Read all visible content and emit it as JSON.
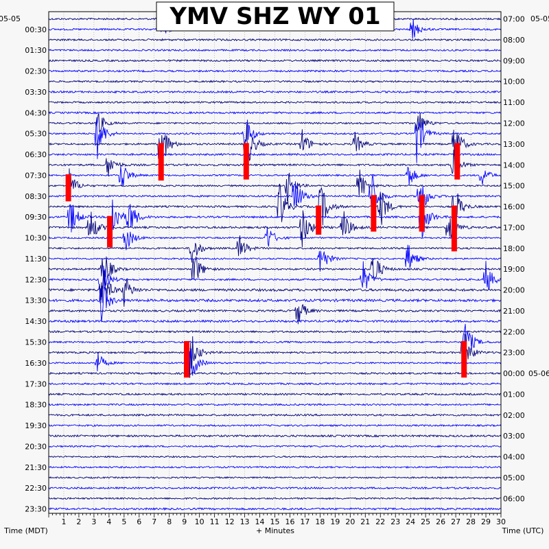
{
  "chart_data": {
    "type": "helicorder",
    "title": "YMV SHZ WY 01",
    "date_left": "05-05",
    "date_right": "05-05",
    "date_right_change": "05-06",
    "xlabel": "+ Minutes",
    "left_axis_label": "Time (MDT)",
    "right_axis_label": "Time (UTC)",
    "x_ticks": [
      "1",
      "2",
      "3",
      "4",
      "5",
      "6",
      "7",
      "8",
      "9",
      "10",
      "11",
      "12",
      "13",
      "14",
      "15",
      "16",
      "17",
      "18",
      "19",
      "20",
      "21",
      "22",
      "23",
      "24",
      "25",
      "26",
      "27",
      "28",
      "29",
      "30"
    ],
    "xlim": [
      0,
      30
    ],
    "rows_per_hour": 2,
    "left_time_labels": [
      "00:30",
      "01:30",
      "02:30",
      "03:30",
      "04:30",
      "05:30",
      "06:30",
      "07:30",
      "08:30",
      "09:30",
      "10:30",
      "11:30",
      "12:30",
      "13:30",
      "14:30",
      "15:30",
      "16:30",
      "17:30",
      "18:30",
      "19:30",
      "20:30",
      "21:30",
      "22:30",
      "23:30"
    ],
    "right_time_labels": [
      "07:00",
      "08:00",
      "09:00",
      "10:00",
      "11:00",
      "12:00",
      "13:00",
      "14:00",
      "15:00",
      "16:00",
      "17:00",
      "18:00",
      "19:00",
      "20:00",
      "21:00",
      "22:00",
      "23:00",
      "00:00",
      "01:00",
      "02:00",
      "03:00",
      "04:00",
      "05:00",
      "06:00"
    ],
    "trace_colors": [
      "#00007a",
      "#0000ff"
    ],
    "clip_color": "#ff0000",
    "events": [
      {
        "row": 1,
        "minute": 24.1,
        "amp": 1.2
      },
      {
        "row": 1,
        "minute": 7.5,
        "amp": 0.8
      },
      {
        "row": 10,
        "minute": 3.2,
        "amp": 1.4
      },
      {
        "row": 10,
        "minute": 24.5,
        "amp": 1.6
      },
      {
        "row": 11,
        "minute": 3.2,
        "amp": 2.8
      },
      {
        "row": 11,
        "minute": 13.0,
        "amp": 2.2
      },
      {
        "row": 11,
        "minute": 24.4,
        "amp": 3.0
      },
      {
        "row": 12,
        "minute": 7.4,
        "amp": 3.2
      },
      {
        "row": 12,
        "minute": 13.1,
        "amp": 3.0
      },
      {
        "row": 12,
        "minute": 16.8,
        "amp": 1.5
      },
      {
        "row": 12,
        "minute": 20.3,
        "amp": 1.2
      },
      {
        "row": 12,
        "minute": 26.9,
        "amp": 2.5
      },
      {
        "row": 14,
        "minute": 3.9,
        "amp": 1.4
      },
      {
        "row": 14,
        "minute": 26.8,
        "amp": 1.8
      },
      {
        "row": 15,
        "minute": 4.8,
        "amp": 1.8
      },
      {
        "row": 15,
        "minute": 23.8,
        "amp": 1.5
      },
      {
        "row": 15,
        "minute": 28.7,
        "amp": 1.2
      },
      {
        "row": 16,
        "minute": 1.3,
        "amp": 2.0
      },
      {
        "row": 16,
        "minute": 15.8,
        "amp": 1.8
      },
      {
        "row": 16,
        "minute": 20.6,
        "amp": 2.0
      },
      {
        "row": 17,
        "minute": 16.3,
        "amp": 2.4
      },
      {
        "row": 17,
        "minute": 21.4,
        "amp": 2.8
      },
      {
        "row": 17,
        "minute": 24.6,
        "amp": 2.6
      },
      {
        "row": 18,
        "minute": 15.3,
        "amp": 2.6
      },
      {
        "row": 18,
        "minute": 18.0,
        "amp": 3.0
      },
      {
        "row": 18,
        "minute": 22.0,
        "amp": 2.2
      },
      {
        "row": 18,
        "minute": 26.9,
        "amp": 2.4
      },
      {
        "row": 19,
        "minute": 1.4,
        "amp": 2.2
      },
      {
        "row": 19,
        "minute": 4.2,
        "amp": 2.6
      },
      {
        "row": 19,
        "minute": 5.3,
        "amp": 2.2
      },
      {
        "row": 19,
        "minute": 24.7,
        "amp": 2.8
      },
      {
        "row": 20,
        "minute": 2.7,
        "amp": 2.2
      },
      {
        "row": 20,
        "minute": 16.8,
        "amp": 2.4
      },
      {
        "row": 20,
        "minute": 19.5,
        "amp": 2.0
      },
      {
        "row": 20,
        "minute": 26.5,
        "amp": 2.2
      },
      {
        "row": 21,
        "minute": 5.1,
        "amp": 1.6
      },
      {
        "row": 21,
        "minute": 14.5,
        "amp": 1.4
      },
      {
        "row": 22,
        "minute": 9.5,
        "amp": 1.8
      },
      {
        "row": 22,
        "minute": 12.6,
        "amp": 1.6
      },
      {
        "row": 23,
        "minute": 18.0,
        "amp": 2.0
      },
      {
        "row": 23,
        "minute": 23.8,
        "amp": 1.8
      },
      {
        "row": 24,
        "minute": 3.6,
        "amp": 2.4
      },
      {
        "row": 24,
        "minute": 9.6,
        "amp": 2.2
      },
      {
        "row": 24,
        "minute": 21.5,
        "amp": 2.2
      },
      {
        "row": 25,
        "minute": 3.4,
        "amp": 2.6
      },
      {
        "row": 25,
        "minute": 20.8,
        "amp": 2.0
      },
      {
        "row": 25,
        "minute": 29.0,
        "amp": 1.8
      },
      {
        "row": 26,
        "minute": 3.5,
        "amp": 2.6
      },
      {
        "row": 26,
        "minute": 5.0,
        "amp": 1.6
      },
      {
        "row": 27,
        "minute": 3.5,
        "amp": 2.2
      },
      {
        "row": 28,
        "minute": 16.5,
        "amp": 1.6
      },
      {
        "row": 31,
        "minute": 27.6,
        "amp": 2.6
      },
      {
        "row": 32,
        "minute": 9.3,
        "amp": 3.0
      },
      {
        "row": 32,
        "minute": 27.5,
        "amp": 2.4
      },
      {
        "row": 33,
        "minute": 3.2,
        "amp": 1.2
      },
      {
        "row": 33,
        "minute": 9.4,
        "amp": 2.2
      }
    ],
    "clips": [
      {
        "row": 12,
        "minute": 7.45,
        "span": 3.6
      },
      {
        "row": 12,
        "minute": 13.1,
        "span": 3.5
      },
      {
        "row": 12,
        "minute": 27.1,
        "span": 3.5
      },
      {
        "row": 15,
        "minute": 1.3,
        "span": 2.6
      },
      {
        "row": 17,
        "minute": 21.55,
        "span": 3.5
      },
      {
        "row": 17,
        "minute": 24.75,
        "span": 3.5
      },
      {
        "row": 18,
        "minute": 17.9,
        "span": 2.8
      },
      {
        "row": 18,
        "minute": 26.9,
        "span": 4.4
      },
      {
        "row": 19,
        "minute": 4.05,
        "span": 3.0
      },
      {
        "row": 31,
        "minute": 9.15,
        "span": 3.5
      },
      {
        "row": 31,
        "minute": 27.55,
        "span": 3.5
      }
    ]
  }
}
